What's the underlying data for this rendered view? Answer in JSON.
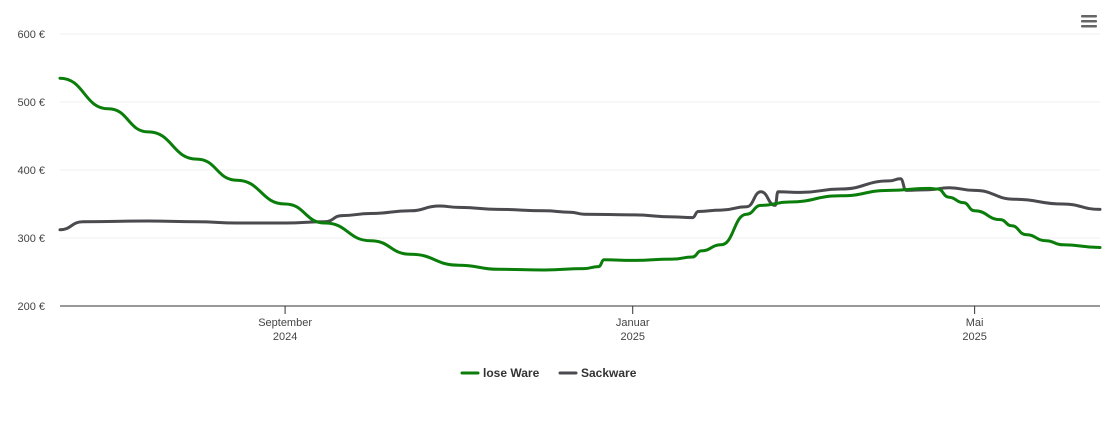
{
  "chart_data": {
    "type": "line",
    "title": "",
    "xlabel": "",
    "ylabel": "",
    "ylim": [
      200,
      600
    ],
    "y_ticks": [
      {
        "value": 200,
        "label": "200 €"
      },
      {
        "value": 300,
        "label": "300 €"
      },
      {
        "value": 400,
        "label": "400 €"
      },
      {
        "value": 500,
        "label": "500 €"
      },
      {
        "value": 600,
        "label": "600 €"
      }
    ],
    "xlim": [
      "2024-06-14",
      "2025-06-14"
    ],
    "x_ticks": [
      {
        "date": "2024-09-01",
        "line1": "September",
        "line2": "2024"
      },
      {
        "date": "2025-01-01",
        "line1": "Januar",
        "line2": "2025"
      },
      {
        "date": "2025-05-01",
        "line1": "Mai",
        "line2": "2025"
      }
    ],
    "grid": true,
    "legend_position": "bottom-center",
    "series": [
      {
        "name": "lose Ware",
        "color": "#0a7d0a",
        "points": [
          [
            "2024-06-14",
            535
          ],
          [
            "2024-07-01",
            490
          ],
          [
            "2024-07-15",
            456
          ],
          [
            "2024-08-01",
            416
          ],
          [
            "2024-08-15",
            385
          ],
          [
            "2024-09-01",
            350
          ],
          [
            "2024-09-15",
            322
          ],
          [
            "2024-10-01",
            296
          ],
          [
            "2024-10-15",
            276
          ],
          [
            "2024-11-01",
            260
          ],
          [
            "2024-11-15",
            254
          ],
          [
            "2024-12-01",
            253
          ],
          [
            "2024-12-15",
            255
          ],
          [
            "2024-12-20",
            258
          ],
          [
            "2024-12-22",
            268
          ],
          [
            "2025-01-01",
            267
          ],
          [
            "2025-01-15",
            269
          ],
          [
            "2025-01-22",
            272
          ],
          [
            "2025-01-25",
            281
          ],
          [
            "2025-02-01",
            290
          ],
          [
            "2025-02-10",
            335
          ],
          [
            "2025-02-15",
            348
          ],
          [
            "2025-02-25",
            353
          ],
          [
            "2025-03-15",
            362
          ],
          [
            "2025-04-01",
            370
          ],
          [
            "2025-04-15",
            373
          ],
          [
            "2025-04-18",
            372
          ],
          [
            "2025-04-22",
            360
          ],
          [
            "2025-04-27",
            352
          ],
          [
            "2025-05-01",
            340
          ],
          [
            "2025-05-10",
            327
          ],
          [
            "2025-05-14",
            318
          ],
          [
            "2025-05-19",
            305
          ],
          [
            "2025-05-26",
            296
          ],
          [
            "2025-06-01",
            290
          ],
          [
            "2025-06-14",
            286
          ]
        ]
      },
      {
        "name": "Sackware",
        "color": "#4a4a4f",
        "points": [
          [
            "2024-06-14",
            312
          ],
          [
            "2024-06-22",
            324
          ],
          [
            "2024-07-15",
            325
          ],
          [
            "2024-08-01",
            324
          ],
          [
            "2024-08-15",
            322
          ],
          [
            "2024-09-01",
            322
          ],
          [
            "2024-09-15",
            324
          ],
          [
            "2024-09-21",
            333
          ],
          [
            "2024-10-01",
            336
          ],
          [
            "2024-10-15",
            340
          ],
          [
            "2024-10-25",
            347
          ],
          [
            "2024-11-01",
            345
          ],
          [
            "2024-11-15",
            342
          ],
          [
            "2024-12-01",
            340
          ],
          [
            "2024-12-10",
            338
          ],
          [
            "2024-12-15",
            335
          ],
          [
            "2025-01-01",
            334
          ],
          [
            "2025-01-15",
            331
          ],
          [
            "2025-01-22",
            330
          ],
          [
            "2025-01-24",
            339
          ],
          [
            "2025-02-01",
            341
          ],
          [
            "2025-02-10",
            346
          ],
          [
            "2025-02-15",
            368
          ],
          [
            "2025-02-20",
            348
          ],
          [
            "2025-02-21",
            368
          ],
          [
            "2025-03-01",
            367
          ],
          [
            "2025-03-15",
            372
          ],
          [
            "2025-04-01",
            384
          ],
          [
            "2025-04-05",
            387
          ],
          [
            "2025-04-07",
            370
          ],
          [
            "2025-04-15",
            371
          ],
          [
            "2025-04-22",
            374
          ],
          [
            "2025-05-01",
            370
          ],
          [
            "2025-05-15",
            357
          ],
          [
            "2025-06-01",
            350
          ],
          [
            "2025-06-14",
            342
          ]
        ]
      }
    ]
  },
  "toolbar": {
    "menu_icon": "hamburger-menu-icon"
  }
}
